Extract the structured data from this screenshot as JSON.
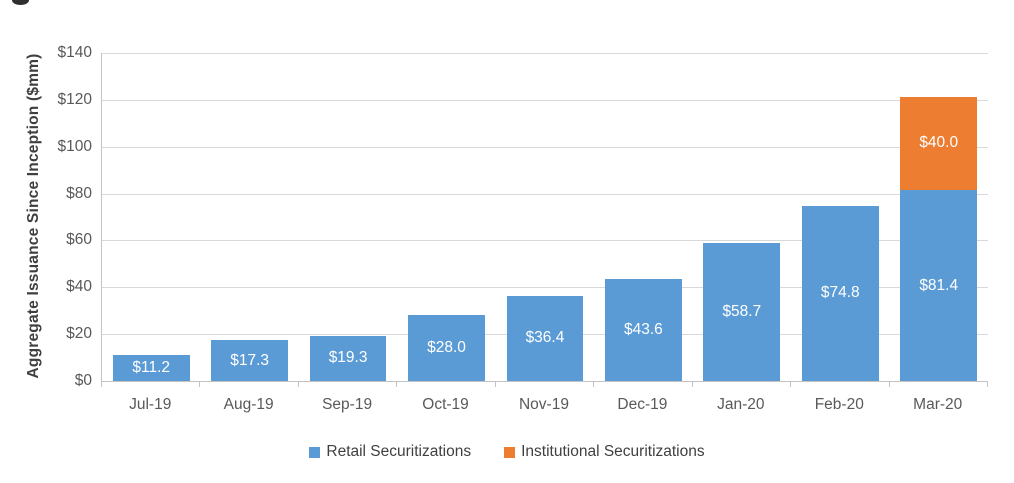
{
  "chart_data": {
    "type": "bar",
    "stacked": true,
    "y_axis_title": "Aggregate Issuance Since Inception ($mm)",
    "categories": [
      "Jul-19",
      "Aug-19",
      "Sep-19",
      "Oct-19",
      "Nov-19",
      "Dec-19",
      "Jan-20",
      "Feb-20",
      "Mar-20"
    ],
    "series": [
      {
        "name": "Retail Securitizations",
        "color": "#5B9BD5",
        "values": [
          11.2,
          17.3,
          19.3,
          28.0,
          36.4,
          43.6,
          58.7,
          74.8,
          81.4
        ],
        "labels": [
          "$11.2",
          "$17.3",
          "$19.3",
          "$28.0",
          "$36.4",
          "$43.6",
          "$58.7",
          "$74.8",
          "$81.4"
        ]
      },
      {
        "name": "Institutional Securitizations",
        "color": "#ED7D31",
        "values": [
          0,
          0,
          0,
          0,
          0,
          0,
          0,
          0,
          40.0
        ],
        "labels": [
          null,
          null,
          null,
          null,
          null,
          null,
          null,
          null,
          "$40.0"
        ]
      }
    ],
    "y_ticks": [
      {
        "value": 140,
        "label": "$140"
      },
      {
        "value": 120,
        "label": "$120"
      },
      {
        "value": 100,
        "label": "$100"
      },
      {
        "value": 80,
        "label": "$80"
      },
      {
        "value": 60,
        "label": "$60"
      },
      {
        "value": 40,
        "label": "$40"
      },
      {
        "value": 20,
        "label": "$20"
      },
      {
        "value": 0,
        "label": "$0"
      }
    ],
    "ylim": [
      0,
      140
    ],
    "grid": true,
    "legend_position": "bottom",
    "data_label_color": "#ffffff",
    "gridline_color": "#d9d9d9",
    "axis_line_color": "#c3c3c3",
    "tick_label_color": "#595959",
    "axis_title_color": "#3f3f3f"
  },
  "legend": {
    "items": [
      {
        "label": "Retail Securitizations",
        "color": "#5B9BD5"
      },
      {
        "label": "Institutional Securitizations",
        "color": "#ED7D31"
      }
    ]
  }
}
